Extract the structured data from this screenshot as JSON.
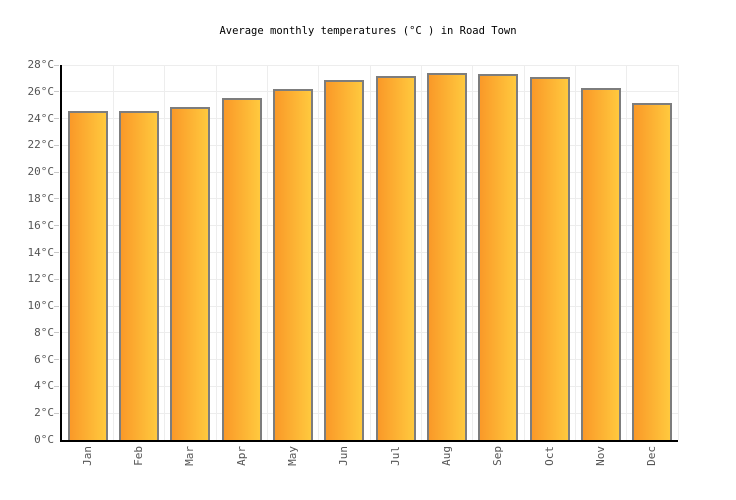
{
  "page": {
    "title": "Average monthly temperatures (°C ) in Road Town"
  },
  "chart_data": {
    "type": "bar",
    "title": "Average monthly temperatures (°C ) in Road Town",
    "categories": [
      "Jan",
      "Feb",
      "Mar",
      "Apr",
      "May",
      "Jun",
      "Jul",
      "Aug",
      "Sep",
      "Oct",
      "Nov",
      "Dec"
    ],
    "values": [
      24.6,
      24.6,
      24.9,
      25.5,
      26.2,
      26.9,
      27.2,
      27.4,
      27.3,
      27.1,
      26.3,
      25.2
    ],
    "unit": "°C",
    "xlabel": "",
    "ylabel": "",
    "ylim": [
      0,
      28
    ],
    "ytick_step": 2,
    "ytick_labels": [
      "0°C",
      "2°C",
      "4°C",
      "6°C",
      "8°C",
      "10°C",
      "12°C",
      "14°C",
      "16°C",
      "18°C",
      "20°C",
      "22°C",
      "24°C",
      "26°C",
      "28°C"
    ],
    "grid": true,
    "legend": false,
    "legend_position": "none",
    "colors": {
      "bar_gradient_left": "#FA9928",
      "bar_gradient_right": "#FFC93E",
      "bar_border": "#7D7D7D",
      "gridline": "#EDEDED",
      "axis": "#000000",
      "tick_text": "#555555",
      "title_text": "#000000",
      "background": "#FFFFFF"
    }
  }
}
